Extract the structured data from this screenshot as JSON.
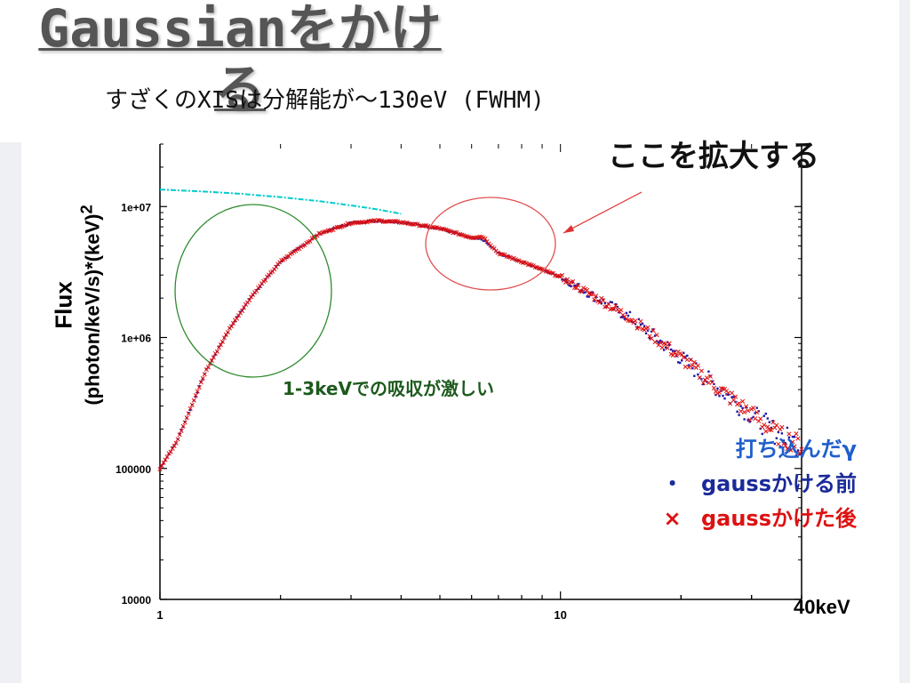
{
  "slide": {
    "title": "Gaussianをかける",
    "subtitle": "すざくのXISは分解能が～130eV (FWHM)",
    "callout": "ここを拡大する",
    "annotation": "1-3keVでの吸収が激しい",
    "energy_limit_label": "40keV"
  },
  "legend": {
    "injected": {
      "label": "打ち込んだγ",
      "color": "#00cccc"
    },
    "before": {
      "marker": "・",
      "label": "gaussかける前",
      "color": "#1a1aaa"
    },
    "after": {
      "marker": "×",
      "label": "gaussかけた後",
      "color": "#dd1111"
    }
  },
  "chart_data": {
    "type": "scatter",
    "title": "",
    "xlabel": "",
    "ylabel_line1": "Flux",
    "ylabel_line2": "(photon/keV/s)*(keV)",
    "ylabel_superscript": "2",
    "xscale": "log",
    "yscale": "log",
    "xlim": [
      1,
      40
    ],
    "ylim": [
      10000,
      30000000
    ],
    "x_tick_labels": [
      "1",
      "10"
    ],
    "y_tick_labels": [
      "10000",
      "100000",
      "1e+06",
      "1e+07"
    ],
    "series": [
      {
        "name": "打ち込んだγ",
        "color": "#00cccc",
        "x": [
          1.0,
          1.3,
          1.6,
          2.0,
          2.5,
          3.0,
          3.5,
          4.0
        ],
        "y": [
          13500000,
          13000000,
          12500000,
          11800000,
          11000000,
          10200000,
          9500000,
          8800000
        ]
      },
      {
        "name": "gaussかける前",
        "color": "#1a1aaa",
        "x": [
          1.0,
          1.1,
          1.2,
          1.3,
          1.5,
          1.7,
          2.0,
          2.5,
          3.0,
          3.5,
          4.0,
          5.0,
          6.0,
          6.4,
          7.0,
          8.0,
          10.0,
          12.0,
          15.0,
          20.0,
          25.0,
          30.0,
          35.0,
          40.0
        ],
        "y": [
          100000,
          160000,
          300000,
          550000,
          1200000,
          2100000,
          3800000,
          6200000,
          7500000,
          7800000,
          7600000,
          6800000,
          5700000,
          5600000,
          4400000,
          3800000,
          2900000,
          2100000,
          1400000,
          700000,
          400000,
          260000,
          180000,
          150000
        ]
      },
      {
        "name": "gaussかけた後",
        "color": "#dd1111",
        "x": [
          1.0,
          1.1,
          1.2,
          1.3,
          1.5,
          1.7,
          2.0,
          2.5,
          3.0,
          3.5,
          4.0,
          5.0,
          6.0,
          6.4,
          7.0,
          8.0,
          10.0,
          12.0,
          15.0,
          20.0,
          25.0,
          30.0,
          35.0,
          40.0
        ],
        "y": [
          100000,
          160000,
          300000,
          550000,
          1200000,
          2100000,
          3800000,
          6200000,
          7500000,
          7800000,
          7600000,
          6800000,
          5800000,
          5900000,
          4400000,
          3800000,
          2900000,
          2100000,
          1400000,
          700000,
          400000,
          260000,
          180000,
          150000
        ]
      }
    ]
  }
}
